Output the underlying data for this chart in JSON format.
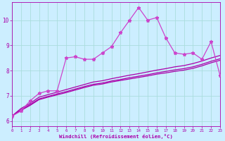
{
  "title": "",
  "xlabel": "Windchill (Refroidissement éolien,°C)",
  "bg_color": "#cceeff",
  "grid_color": "#aadddd",
  "line_color": "#aa00aa",
  "line_color2": "#cc44cc",
  "xlim": [
    0,
    23
  ],
  "ylim": [
    5.8,
    10.7
  ],
  "xticks": [
    0,
    1,
    2,
    3,
    4,
    5,
    6,
    7,
    8,
    9,
    10,
    11,
    12,
    13,
    14,
    15,
    16,
    17,
    18,
    19,
    20,
    21,
    22,
    23
  ],
  "yticks": [
    6,
    7,
    8,
    9,
    10
  ],
  "series_main": [
    6.2,
    6.4,
    6.8,
    7.1,
    7.2,
    7.2,
    8.5,
    8.55,
    8.45,
    8.45,
    8.7,
    8.95,
    9.5,
    10.0,
    10.5,
    10.0,
    10.1,
    9.3,
    8.7,
    8.65,
    8.7,
    8.45,
    9.15,
    7.8
  ],
  "series_line1": [
    6.2,
    6.5,
    6.7,
    6.95,
    7.05,
    7.15,
    7.25,
    7.35,
    7.45,
    7.55,
    7.6,
    7.68,
    7.75,
    7.82,
    7.88,
    7.95,
    8.02,
    8.08,
    8.15,
    8.2,
    8.28,
    8.38,
    8.5,
    8.6
  ],
  "series_line2": [
    6.2,
    6.45,
    6.65,
    6.88,
    6.98,
    7.08,
    7.17,
    7.27,
    7.37,
    7.46,
    7.51,
    7.59,
    7.65,
    7.72,
    7.78,
    7.84,
    7.91,
    7.97,
    8.03,
    8.08,
    8.15,
    8.25,
    8.37,
    8.47
  ],
  "series_line3": [
    6.2,
    6.42,
    6.62,
    6.85,
    6.95,
    7.04,
    7.13,
    7.23,
    7.33,
    7.42,
    7.47,
    7.55,
    7.61,
    7.67,
    7.73,
    7.79,
    7.86,
    7.91,
    7.97,
    8.02,
    8.09,
    8.19,
    8.31,
    8.41
  ],
  "marker": "*",
  "marker_size": 3.5,
  "line_width": 0.9
}
